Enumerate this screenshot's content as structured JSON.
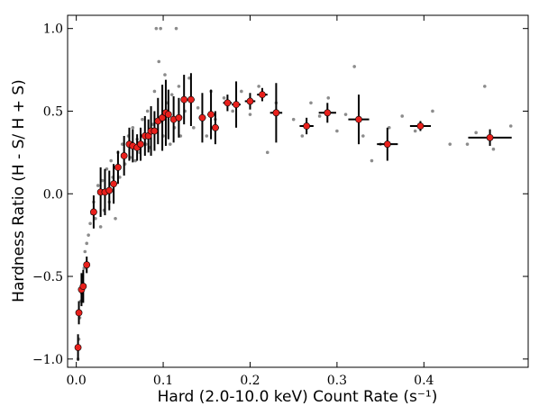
{
  "chart_data": {
    "type": "scatter",
    "xlabel": "Hard (2.0-10.0 keV) Count Rate (s⁻¹)",
    "ylabel": "Hardness Ratio (H - S/ H + S)",
    "xlim": [
      -0.01,
      0.52
    ],
    "ylim": [
      -1.05,
      1.08
    ],
    "xticks": [
      {
        "value": 0,
        "label": "0.0"
      },
      0.1,
      0.2,
      0.3,
      0.4
    ],
    "yticks": [
      {
        "value": -1,
        "label": "−1.0"
      },
      {
        "value": -0.5,
        "label": "−0.5"
      },
      {
        "value": 0,
        "label": "0.0"
      },
      0.5,
      {
        "value": 1,
        "label": "1.0"
      }
    ],
    "series": [
      {
        "color": "#8c8c8c",
        "x": [
          0.002,
          0.003,
          0.004,
          0.005,
          0.006,
          0.007,
          0.009,
          0.01,
          0.012,
          0.014,
          0.016,
          0.018,
          0.02,
          0.022,
          0.025,
          0.028,
          0.03,
          0.032,
          0.035,
          0.038,
          0.04,
          0.042,
          0.045,
          0.048,
          0.05,
          0.053,
          0.056,
          0.06,
          0.062,
          0.065,
          0.068,
          0.07,
          0.073,
          0.076,
          0.08,
          0.082,
          0.085,
          0.088,
          0.09,
          0.092,
          0.095,
          0.097,
          0.1,
          0.102,
          0.105,
          0.108,
          0.11,
          0.113,
          0.115,
          0.118,
          0.12,
          0.125,
          0.13,
          0.135,
          0.14,
          0.15,
          0.155,
          0.16,
          0.17,
          0.18,
          0.19,
          0.2,
          0.21,
          0.22,
          0.23,
          0.25,
          0.26,
          0.27,
          0.28,
          0.29,
          0.3,
          0.31,
          0.32,
          0.33,
          0.34,
          0.35,
          0.36,
          0.375,
          0.39,
          0.41,
          0.43,
          0.45,
          0.46,
          0.47,
          0.48,
          0.5
        ],
        "values": [
          -1.0,
          -0.88,
          -0.75,
          -0.65,
          -0.6,
          -0.5,
          -0.45,
          -0.35,
          -0.3,
          -0.25,
          -0.18,
          -0.12,
          -0.05,
          -0.15,
          0.05,
          -0.2,
          0.08,
          -0.1,
          0.15,
          -0.05,
          0.2,
          0.1,
          -0.15,
          0.25,
          0.1,
          0.3,
          0.18,
          0.35,
          0.22,
          0.4,
          0.2,
          0.33,
          0.25,
          0.45,
          0.3,
          0.5,
          0.28,
          0.42,
          0.62,
          1.0,
          0.8,
          1.0,
          0.35,
          0.72,
          0.55,
          0.3,
          0.6,
          0.4,
          1.0,
          0.65,
          0.35,
          0.5,
          0.7,
          0.4,
          0.52,
          0.35,
          0.62,
          0.45,
          0.58,
          0.5,
          0.62,
          0.48,
          0.65,
          0.25,
          0.55,
          0.45,
          0.35,
          0.55,
          0.47,
          0.58,
          0.38,
          0.48,
          0.77,
          0.35,
          0.2,
          0.3,
          0.4,
          0.47,
          0.38,
          0.5,
          0.3,
          0.3,
          0.37,
          0.65,
          0.27,
          0.41
        ]
      },
      {
        "color": "#e8201c",
        "x": [
          0.002,
          0.003,
          0.006,
          0.008,
          0.012,
          0.02,
          0.028,
          0.033,
          0.038,
          0.043,
          0.048,
          0.055,
          0.061,
          0.065,
          0.07,
          0.074,
          0.079,
          0.083,
          0.086,
          0.09,
          0.094,
          0.099,
          0.103,
          0.106,
          0.112,
          0.118,
          0.124,
          0.132,
          0.145,
          0.155,
          0.16,
          0.174,
          0.184,
          0.2,
          0.214,
          0.23,
          0.265,
          0.289,
          0.325,
          0.358,
          0.396,
          0.476
        ],
        "values": [
          -0.93,
          -0.72,
          -0.58,
          -0.56,
          -0.43,
          -0.11,
          0.01,
          0.01,
          0.02,
          0.06,
          0.16,
          0.23,
          0.3,
          0.29,
          0.28,
          0.3,
          0.35,
          0.35,
          0.38,
          0.38,
          0.44,
          0.46,
          0.49,
          0.48,
          0.45,
          0.46,
          0.57,
          0.57,
          0.46,
          0.48,
          0.4,
          0.55,
          0.54,
          0.56,
          0.6,
          0.49,
          0.41,
          0.49,
          0.45,
          0.3,
          0.41,
          0.34
        ],
        "xerr": [
          0.001,
          0.001,
          0.001,
          0.001,
          0.002,
          0.003,
          0.002,
          0.002,
          0.002,
          0.002,
          0.002,
          0.002,
          0.002,
          0.002,
          0.002,
          0.002,
          0.002,
          0.002,
          0.002,
          0.002,
          0.002,
          0.002,
          0.002,
          0.002,
          0.003,
          0.003,
          0.003,
          0.004,
          0.004,
          0.004,
          0.004,
          0.005,
          0.005,
          0.006,
          0.006,
          0.007,
          0.008,
          0.01,
          0.012,
          0.012,
          0.012,
          0.025
        ],
        "yerr": [
          0.08,
          0.07,
          0.1,
          0.1,
          0.05,
          0.1,
          0.15,
          0.14,
          0.12,
          0.12,
          0.1,
          0.12,
          0.1,
          0.1,
          0.08,
          0.1,
          0.12,
          0.1,
          0.15,
          0.12,
          0.14,
          0.2,
          0.2,
          0.15,
          0.14,
          0.12,
          0.15,
          0.16,
          0.15,
          0.15,
          0.1,
          0.05,
          0.14,
          0.05,
          0.04,
          0.18,
          0.05,
          0.06,
          0.15,
          0.1,
          0.03,
          0.05
        ]
      }
    ]
  }
}
